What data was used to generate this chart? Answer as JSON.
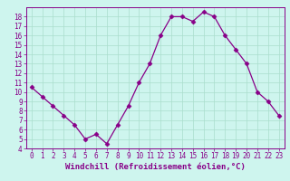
{
  "x": [
    0,
    1,
    2,
    3,
    4,
    5,
    6,
    7,
    8,
    9,
    10,
    11,
    12,
    13,
    14,
    15,
    16,
    17,
    18,
    19,
    20,
    21,
    22,
    23
  ],
  "y": [
    10.5,
    9.5,
    8.5,
    7.5,
    6.5,
    5.0,
    5.5,
    4.5,
    6.5,
    8.5,
    11.0,
    13.0,
    16.0,
    18.0,
    18.0,
    17.5,
    18.5,
    18.0,
    16.0,
    14.5,
    13.0,
    10.0,
    9.0,
    7.5
  ],
  "line_color": "#880088",
  "marker": "D",
  "marker_size": 2.5,
  "bg_color": "#cef5ee",
  "grid_color": "#aaddcc",
  "xlabel": "Windchill (Refroidissement éolien,°C)",
  "xlabel_color": "#880088",
  "xlim": [
    -0.5,
    23.5
  ],
  "ylim": [
    4,
    19
  ],
  "yticks": [
    4,
    5,
    6,
    7,
    8,
    9,
    10,
    11,
    12,
    13,
    14,
    15,
    16,
    17,
    18
  ],
  "xticks": [
    0,
    1,
    2,
    3,
    4,
    5,
    6,
    7,
    8,
    9,
    10,
    11,
    12,
    13,
    14,
    15,
    16,
    17,
    18,
    19,
    20,
    21,
    22,
    23
  ],
  "tick_color": "#880088",
  "spine_color": "#880088",
  "tick_fontsize": 5.5,
  "xlabel_fontsize": 6.5
}
